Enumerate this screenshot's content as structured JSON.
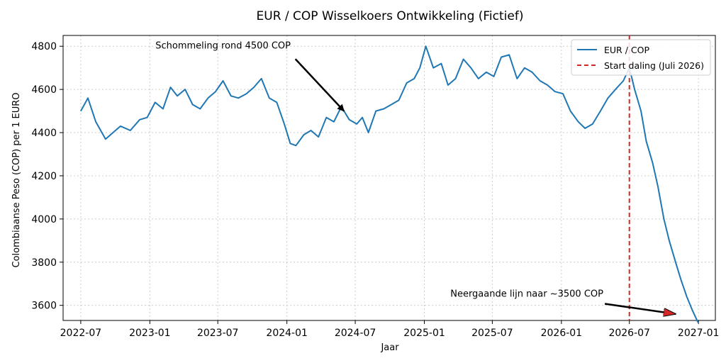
{
  "chart_data": {
    "type": "line",
    "title": "EUR / COP Wisselkoers Ontwikkeling (Fictief)",
    "xlabel": "Jaar",
    "ylabel": "Colombiaanse Peso (COP) per 1 EURO",
    "xlim": [
      "2022-05-15",
      "2027-02-15"
    ],
    "ylim": [
      3530,
      4850
    ],
    "x_ticks": [
      "2022-07",
      "2023-01",
      "2023-07",
      "2024-01",
      "2024-07",
      "2025-01",
      "2025-07",
      "2026-01",
      "2026-07",
      "2027-01"
    ],
    "y_ticks": [
      3600,
      3800,
      4000,
      4200,
      4400,
      4600,
      4800
    ],
    "grid": true,
    "legend_position": "top-right",
    "series": [
      {
        "name": "EUR / COP",
        "color": "#1f77b4",
        "x": [
          "2022-07-01",
          "2022-07-20",
          "2022-08-10",
          "2022-09-05",
          "2022-09-25",
          "2022-10-15",
          "2022-11-10",
          "2022-12-05",
          "2022-12-25",
          "2023-01-15",
          "2023-02-05",
          "2023-02-25",
          "2023-03-15",
          "2023-04-05",
          "2023-04-25",
          "2023-05-15",
          "2023-06-05",
          "2023-06-25",
          "2023-07-15",
          "2023-08-05",
          "2023-08-25",
          "2023-09-15",
          "2023-10-05",
          "2023-10-25",
          "2023-11-15",
          "2023-12-05",
          "2023-12-25",
          "2024-01-10",
          "2024-01-25",
          "2024-02-15",
          "2024-03-05",
          "2024-03-25",
          "2024-04-15",
          "2024-05-05",
          "2024-05-25",
          "2024-06-15",
          "2024-07-05",
          "2024-07-20",
          "2024-08-05",
          "2024-08-25",
          "2024-09-15",
          "2024-10-05",
          "2024-10-25",
          "2024-11-15",
          "2024-12-05",
          "2024-12-20",
          "2025-01-05",
          "2025-01-25",
          "2025-02-15",
          "2025-03-05",
          "2025-03-25",
          "2025-04-15",
          "2025-05-05",
          "2025-05-25",
          "2025-06-15",
          "2025-07-05",
          "2025-07-25",
          "2025-08-15",
          "2025-09-05",
          "2025-09-25",
          "2025-10-15",
          "2025-11-05",
          "2025-11-25",
          "2025-12-15",
          "2026-01-05",
          "2026-01-25",
          "2026-02-15",
          "2026-03-05",
          "2026-03-25",
          "2026-04-15",
          "2026-05-05",
          "2026-05-25",
          "2026-06-15",
          "2026-07-01",
          "2026-07-15",
          "2026-08-01",
          "2026-08-15",
          "2026-09-01",
          "2026-09-15",
          "2026-10-01",
          "2026-10-15",
          "2026-11-01",
          "2026-11-15",
          "2026-12-01",
          "2026-12-15",
          "2026-12-31"
        ],
        "y": [
          4500,
          4560,
          4450,
          4370,
          4400,
          4430,
          4410,
          4460,
          4470,
          4540,
          4510,
          4610,
          4570,
          4600,
          4530,
          4510,
          4560,
          4590,
          4640,
          4570,
          4560,
          4580,
          4610,
          4650,
          4560,
          4540,
          4440,
          4350,
          4340,
          4390,
          4410,
          4380,
          4470,
          4450,
          4520,
          4460,
          4440,
          4470,
          4400,
          4500,
          4510,
          4530,
          4550,
          4630,
          4650,
          4700,
          4800,
          4700,
          4720,
          4620,
          4650,
          4740,
          4700,
          4650,
          4680,
          4660,
          4750,
          4760,
          4650,
          4700,
          4680,
          4640,
          4620,
          4590,
          4580,
          4500,
          4450,
          4420,
          4440,
          4500,
          4560,
          4600,
          4640,
          4700,
          4600,
          4500,
          4360,
          4260,
          4150,
          4000,
          3900,
          3800,
          3720,
          3640,
          3580,
          3520
        ]
      }
    ],
    "vline": {
      "x": "2026-07-01",
      "label": "Start daling (Juli 2026)",
      "color": "#d62728"
    },
    "annotations": [
      {
        "text": "Schommeling rond 4500 COP",
        "text_x": "2023-07-15",
        "text_y": 4790,
        "point_x": "2024-06-01",
        "point_y": 4500
      },
      {
        "text": "Neergaande lijn naar ~3500 COP",
        "text_x": "2025-10-01",
        "text_y": 3640,
        "point_x": "2026-11-01",
        "point_y": 3560
      }
    ]
  }
}
